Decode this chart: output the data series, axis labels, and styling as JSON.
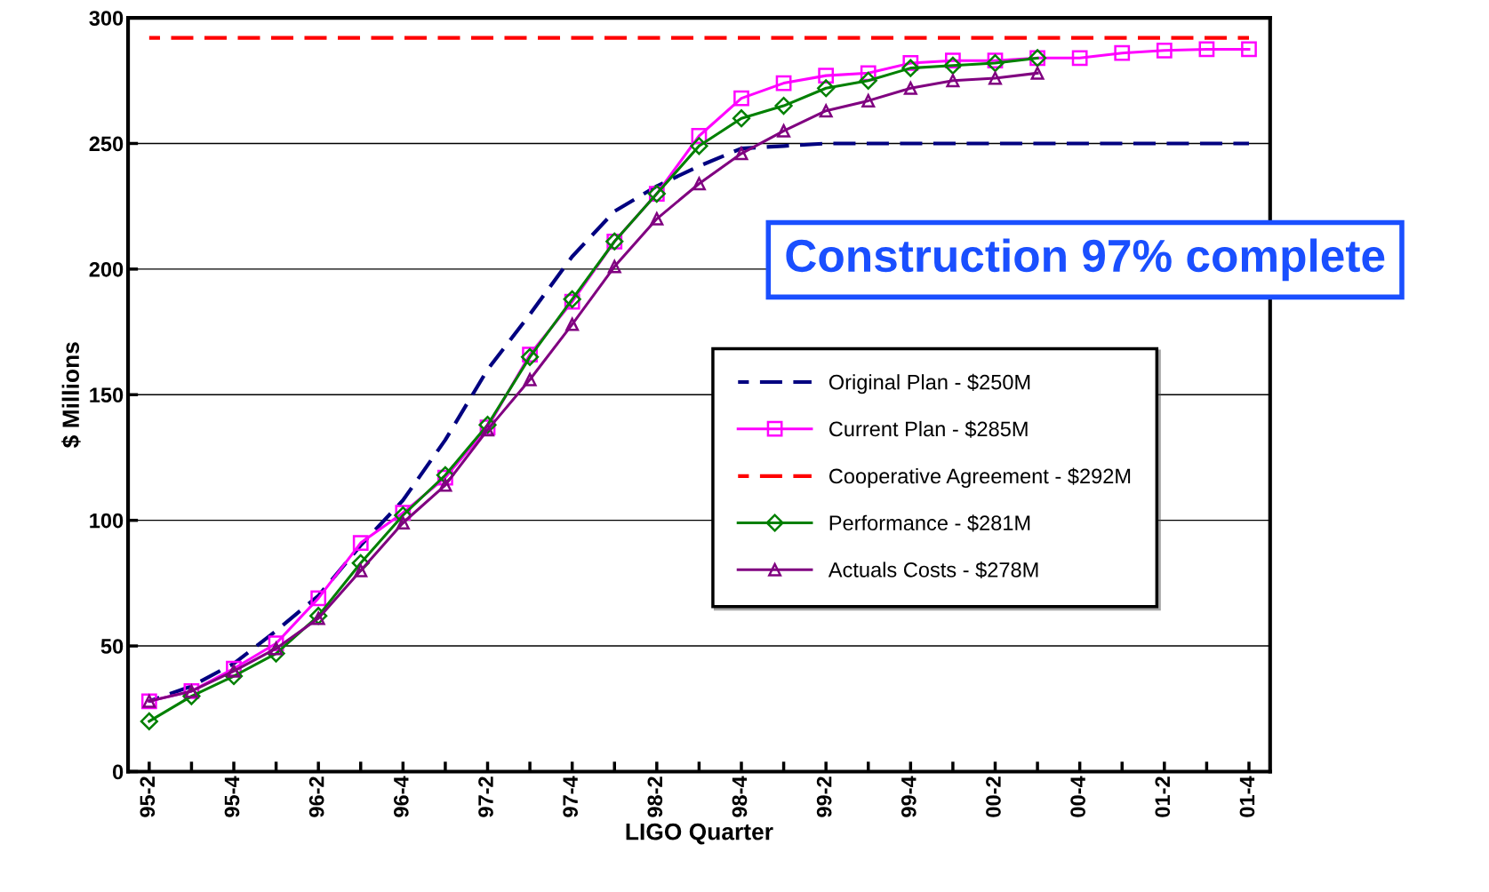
{
  "chart_data": {
    "type": "line",
    "xlabel": "LIGO Quarter",
    "ylabel": "$ Millions",
    "categories": [
      "95-2",
      null,
      "95-4",
      null,
      "96-2",
      null,
      "96-4",
      null,
      "97-2",
      null,
      "97-4",
      null,
      "98-2",
      null,
      "98-4",
      null,
      "99-2",
      null,
      "99-4",
      null,
      "00-2",
      null,
      "00-4",
      null,
      "01-2",
      null,
      "01-4"
    ],
    "ylim": [
      0,
      300
    ],
    "yticks": [
      0,
      50,
      100,
      150,
      200,
      250,
      300
    ],
    "grid": "y",
    "legend": "right",
    "annotations": [
      "Construction 97% complete"
    ],
    "series": [
      {
        "name": "Original Plan - $250M",
        "color": "#000080",
        "line_style": "dashed",
        "marker": "none",
        "values": [
          28,
          34,
          43,
          56,
          70,
          90,
          108,
          132,
          160,
          182,
          205,
          223,
          233,
          241,
          248,
          249,
          250,
          250,
          250,
          250,
          250,
          250,
          250,
          250,
          250,
          250,
          250
        ]
      },
      {
        "name": "Current Plan - $285M",
        "color": "#ff00ff",
        "line_style": "solid",
        "marker": "square",
        "values": [
          28,
          32,
          41,
          51,
          69,
          91,
          103,
          117,
          137,
          166,
          187,
          211,
          230,
          253,
          268,
          274,
          277,
          278,
          282,
          283,
          283,
          284,
          284,
          286,
          287,
          287.5,
          287.5
        ]
      },
      {
        "name": "Cooperative Agreement - $292M",
        "color": "#ff0000",
        "line_style": "dashed",
        "marker": "none",
        "values": [
          292,
          292,
          292,
          292,
          292,
          292,
          292,
          292,
          292,
          292,
          292,
          292,
          292,
          292,
          292,
          292,
          292,
          292,
          292,
          292,
          292,
          292,
          292,
          292,
          292,
          292,
          292
        ]
      },
      {
        "name": "Performance - $281M",
        "color": "#008000",
        "line_style": "solid",
        "marker": "diamond",
        "values": [
          20,
          30,
          38,
          47,
          62,
          83,
          102,
          118,
          138,
          165,
          188,
          211,
          230,
          249,
          260,
          265,
          272,
          275,
          280,
          281,
          282,
          284,
          null,
          null,
          null,
          null,
          null
        ]
      },
      {
        "name": "Actuals Costs - $278M",
        "color": "#800080",
        "line_style": "solid",
        "marker": "triangle",
        "values": [
          28,
          32,
          40,
          49,
          61,
          80,
          99,
          114,
          136,
          156,
          178,
          201,
          220,
          234,
          246,
          255,
          263,
          267,
          272,
          275,
          276,
          278,
          null,
          null,
          null,
          null,
          null
        ]
      }
    ]
  }
}
